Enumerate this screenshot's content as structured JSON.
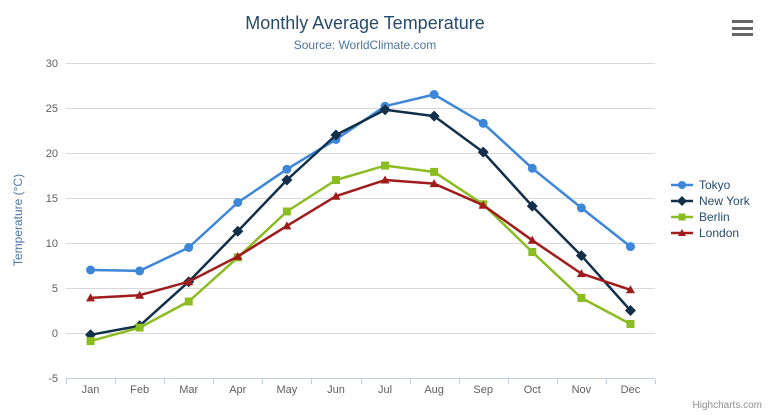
{
  "chart_data": {
    "type": "line",
    "title": "Monthly Average Temperature",
    "subtitle": "Source: WorldClimate.com",
    "categories": [
      "Jan",
      "Feb",
      "Mar",
      "Apr",
      "May",
      "Jun",
      "Jul",
      "Aug",
      "Sep",
      "Oct",
      "Nov",
      "Dec"
    ],
    "xlabel": "",
    "ylabel": "Temperature (°C)",
    "ylim": [
      -5,
      30
    ],
    "yticks": [
      -5,
      0,
      5,
      10,
      15,
      20,
      25,
      30
    ],
    "grid": "horizontal-only",
    "legend_position": "right",
    "series": [
      {
        "name": "Tokyo",
        "marker": "circle",
        "color": "#3e87d8",
        "values": [
          7.0,
          6.9,
          9.5,
          14.5,
          18.2,
          21.5,
          25.2,
          26.5,
          23.3,
          18.3,
          13.9,
          9.6
        ]
      },
      {
        "name": "New York",
        "marker": "diamond",
        "color": "#12304a",
        "values": [
          -0.2,
          0.8,
          5.7,
          11.3,
          17.0,
          22.0,
          24.8,
          24.1,
          20.1,
          14.1,
          8.6,
          2.5
        ]
      },
      {
        "name": "Berlin",
        "marker": "square",
        "color": "#8bbc21",
        "values": [
          -0.9,
          0.6,
          3.5,
          8.4,
          13.5,
          17.0,
          18.6,
          17.9,
          14.3,
          9.0,
          3.9,
          1.0
        ]
      },
      {
        "name": "London",
        "marker": "triangle",
        "color": "#a01b1b",
        "values": [
          3.9,
          4.2,
          5.7,
          8.5,
          11.9,
          15.2,
          17.0,
          16.6,
          14.2,
          10.3,
          6.6,
          4.8
        ]
      }
    ],
    "credits": "Highcharts.com"
  },
  "icons": {
    "context_menu": "hamburger-icon"
  },
  "theme_colors": {
    "title": "#274b6d",
    "subtitle": "#4d759e",
    "axis_label": "#606060",
    "axis_line": "#c0d0e0",
    "gridline": "#d8d8d8",
    "legend_text": "#274b6d",
    "credits_text": "#909090"
  }
}
